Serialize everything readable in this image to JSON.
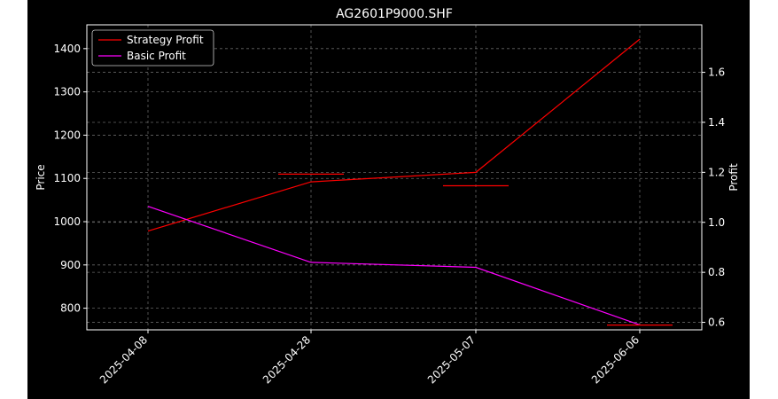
{
  "chart_data": {
    "type": "line",
    "title": "AG2601P9000.SHF",
    "xlabel": "",
    "ylabel_left": "Price",
    "ylabel_right": "Profit",
    "x_ticks": [
      "2025-04-08",
      "2025-04-28",
      "2025-05-07",
      "2025-06-06"
    ],
    "y_left_ticks": [
      800,
      900,
      1000,
      1100,
      1200,
      1300,
      1400
    ],
    "y_left_range": [
      750,
      1455
    ],
    "y_right_ticks": [
      0.6,
      0.8,
      1.0,
      1.2,
      1.4,
      1.6
    ],
    "y_right_range": [
      0.57,
      1.79
    ],
    "grid": true,
    "legend_placement": "upper-left",
    "series": [
      {
        "name": "Strategy Profit",
        "color": "#ff0000",
        "axis": "right",
        "x": [
          "2025-04-08",
          "2025-04-28",
          "2025-05-07",
          "2025-06-06"
        ],
        "values": [
          0.965,
          1.162,
          1.2,
          1.733
        ]
      },
      {
        "name": "Basic Profit",
        "color": "#ff00ff",
        "axis": "right",
        "x": [
          "2025-04-08",
          "2025-04-28",
          "2025-05-07",
          "2025-06-06"
        ],
        "values": [
          1.064,
          0.84,
          0.82,
          0.59
        ]
      }
    ],
    "price_markers": [
      {
        "x": "2025-04-28",
        "value": 1110,
        "color": "#ff0000"
      },
      {
        "x": "2025-05-07",
        "value": 1083,
        "color": "#ff0000"
      },
      {
        "x": "2025-06-06",
        "value": 761,
        "color": "#ff0000"
      }
    ]
  }
}
